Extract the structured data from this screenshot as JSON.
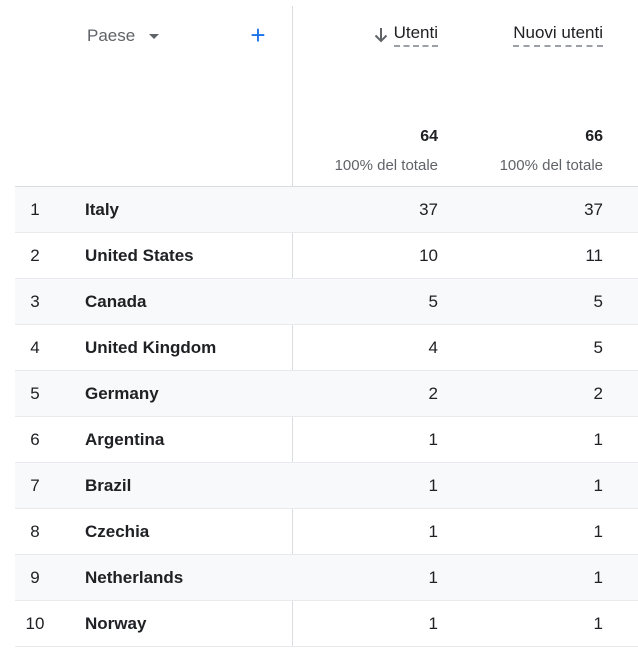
{
  "header": {
    "dimension_label": "Paese",
    "add_label": "+",
    "metrics": [
      {
        "label": "Utenti",
        "total": "64",
        "total_pct": "100% del totale",
        "sorted": true
      },
      {
        "label": "Nuovi utenti",
        "total": "66",
        "total_pct": "100% del totale",
        "sorted": false
      }
    ]
  },
  "rows": [
    {
      "index": "1",
      "country": "Italy",
      "users": "37",
      "new_users": "37"
    },
    {
      "index": "2",
      "country": "United States",
      "users": "10",
      "new_users": "11"
    },
    {
      "index": "3",
      "country": "Canada",
      "users": "5",
      "new_users": "5"
    },
    {
      "index": "4",
      "country": "United Kingdom",
      "users": "4",
      "new_users": "5"
    },
    {
      "index": "5",
      "country": "Germany",
      "users": "2",
      "new_users": "2"
    },
    {
      "index": "6",
      "country": "Argentina",
      "users": "1",
      "new_users": "1"
    },
    {
      "index": "7",
      "country": "Brazil",
      "users": "1",
      "new_users": "1"
    },
    {
      "index": "8",
      "country": "Czechia",
      "users": "1",
      "new_users": "1"
    },
    {
      "index": "9",
      "country": "Netherlands",
      "users": "1",
      "new_users": "1"
    },
    {
      "index": "10",
      "country": "Norway",
      "users": "1",
      "new_users": "1"
    }
  ],
  "colors": {
    "accent": "#1a73e8",
    "row_alt": "#f8f9fa",
    "divider": "#dadce0"
  },
  "icons": {
    "sort": "arrow-down-icon",
    "dimension_menu": "caret-down-icon",
    "add": "plus-icon"
  }
}
